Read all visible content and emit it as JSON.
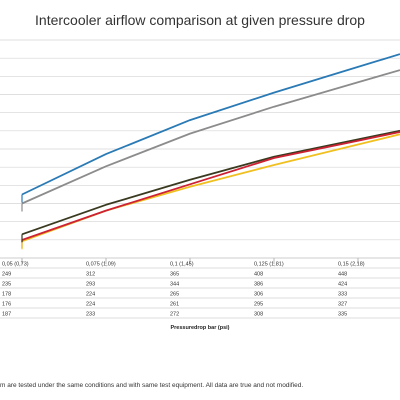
{
  "chart_data": {
    "type": "line",
    "title": "Intercooler airflow comparison at given pressure drop",
    "xlabel": "Pressuredrop bar (psi)",
    "ylabel": "",
    "categories": [
      "0,05 (0,73)",
      "0,075 (1,09)",
      "0,1 (1,45)",
      "0,125 (1,81)",
      "0,15 (2,18)"
    ],
    "x": [
      0.05,
      0.075,
      0.1,
      0.125,
      0.15
    ],
    "ylim": [
      150,
      490
    ],
    "grid": true,
    "legend": "none",
    "series": [
      {
        "color": "#2a7ab5",
        "values": [
          249,
          312,
          365,
          408,
          448
        ]
      },
      {
        "color": "#8c8c8c",
        "values": [
          235,
          293,
          344,
          386,
          424
        ]
      },
      {
        "color": "#cc2233",
        "values": [
          178,
          224,
          265,
          306,
          333
        ]
      },
      {
        "color": "#f0c020",
        "values": [
          176,
          224,
          261,
          295,
          327
        ]
      },
      {
        "color": "#3a3a20",
        "values": [
          187,
          233,
          272,
          308,
          335
        ]
      }
    ]
  },
  "footnote": "m are tested under the same conditions and with same test equipment. All data are true and not modified."
}
